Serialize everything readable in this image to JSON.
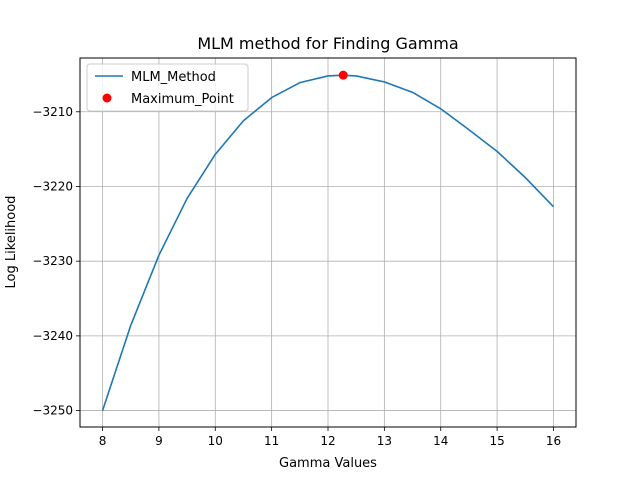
{
  "chart_data": {
    "type": "line",
    "title": "MLM method for Finding Gamma",
    "xlabel": "Gamma Values",
    "ylabel": "Log Likelihood",
    "xlim": [
      7.6,
      16.4
    ],
    "ylim": [
      -3252.2,
      -3202.8
    ],
    "xticks": [
      8,
      9,
      10,
      11,
      12,
      13,
      14,
      15,
      16
    ],
    "yticks": [
      -3250,
      -3240,
      -3230,
      -3220,
      -3210
    ],
    "xtick_labels": [
      "8",
      "9",
      "10",
      "11",
      "12",
      "13",
      "14",
      "15",
      "16"
    ],
    "ytick_labels": [
      "−3250",
      "−3240",
      "−3230",
      "−3220",
      "−3210"
    ],
    "grid": true,
    "legend": {
      "position": "top-left",
      "entries": [
        "MLM_Method",
        "Maximum_Point"
      ]
    },
    "series": [
      {
        "name": "MLM_Method",
        "kind": "line",
        "color": "#1f77b4",
        "x": [
          8,
          8.5,
          9,
          9.5,
          10,
          10.5,
          11,
          11.5,
          12,
          12.25,
          12.5,
          13,
          13.5,
          14,
          14.5,
          15,
          15.5,
          16
        ],
        "y": [
          -3250.0,
          -3238.6,
          -3229.2,
          -3221.6,
          -3215.7,
          -3211.2,
          -3208.1,
          -3206.1,
          -3205.2,
          -3205.1,
          -3205.2,
          -3206.0,
          -3207.4,
          -3209.6,
          -3212.4,
          -3215.3,
          -3218.8,
          -3222.7
        ]
      },
      {
        "name": "Maximum_Point",
        "kind": "scatter",
        "color": "#ff0000",
        "x": [
          12.27
        ],
        "y": [
          -3205.1
        ]
      }
    ]
  }
}
